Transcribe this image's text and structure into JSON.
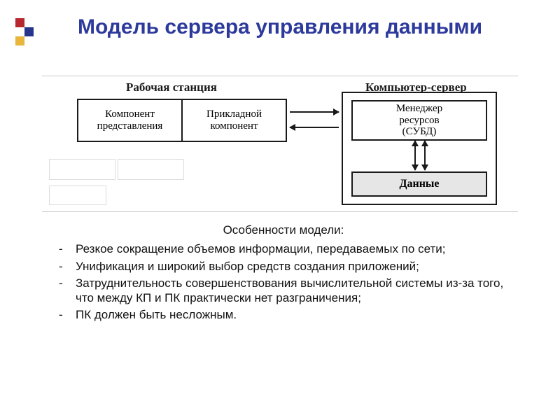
{
  "colors": {
    "title": "#2d3a9c",
    "decor_red": "#b8292f",
    "decor_blue": "#26348b",
    "decor_yellow": "#e7b63a",
    "line": "#1a1a1a",
    "data_bg": "#e6e6e6",
    "ghost_border": "#dcdcdc",
    "page_bg": "#ffffff"
  },
  "title": "Модель сервера управления данными",
  "diagram": {
    "type": "flowchart",
    "labels": {
      "workstation": "Рабочая станция",
      "server": "Компьютер-сервер"
    },
    "workstation_cells": [
      "Компонент представления",
      "Прикладной компонент"
    ],
    "server_boxes": {
      "manager": "Менеджер\nресурсов\n(СУБД)",
      "data": "Данные"
    },
    "fonts": {
      "label_size_pt": 13,
      "cell_size_pt": 11,
      "data_weight": "bold"
    }
  },
  "features": {
    "heading": "Особенности модели:",
    "items": [
      "Резкое сокращение объемов информации, передаваемых по сети;",
      "Унификация и широкий выбор средств создания приложений;",
      "Затруднительность совершенствования вычислительной системы из-за того, что между КП и ПК практически нет разграничения;",
      "ПК должен быть несложным."
    ]
  }
}
